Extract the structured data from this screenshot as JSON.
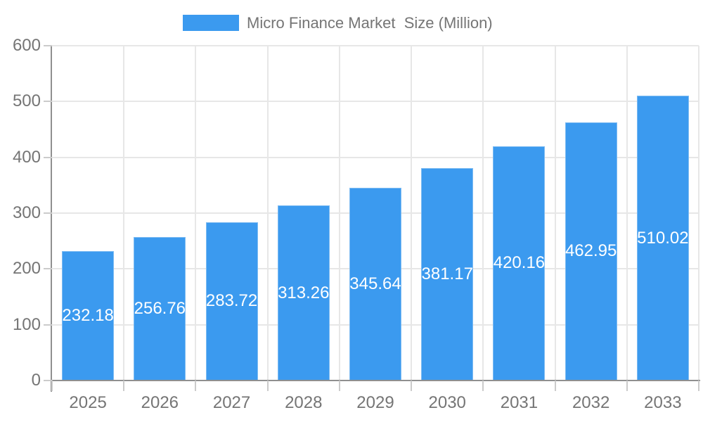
{
  "chart_data": {
    "type": "bar",
    "title": "Micro Finance Market  Size (Million)",
    "legend": {
      "label": "Micro Finance Market  Size (Million)",
      "position": "top"
    },
    "categories": [
      "2025",
      "2026",
      "2027",
      "2028",
      "2029",
      "2030",
      "2031",
      "2032",
      "2033"
    ],
    "series": [
      {
        "name": "Micro Finance Market  Size (Million)",
        "values": [
          232.18,
          256.76,
          283.72,
          313.26,
          345.64,
          381.17,
          420.16,
          462.95,
          510.02
        ]
      }
    ],
    "bar_labels": [
      "232.18",
      "256.76",
      "283.72",
      "313.26",
      "345.64",
      "381.17",
      "420.16",
      "462.95",
      "510.02"
    ],
    "xlabel": "",
    "ylabel": "",
    "ylim": [
      0,
      600
    ],
    "yticks": [
      0,
      100,
      200,
      300,
      400,
      500,
      600
    ],
    "grid": true,
    "value_label_position": "inside-middle",
    "colors": {
      "background": "#FFFFFF",
      "bar_fill": "#3B9AEF",
      "bar_edge": "#7FBCF2",
      "grid": "#E7E7E7",
      "axis": "#8F8F8F",
      "tick": "#CBCBCB",
      "axis_label": "#757575",
      "value_label": "#FFFFFF"
    }
  }
}
